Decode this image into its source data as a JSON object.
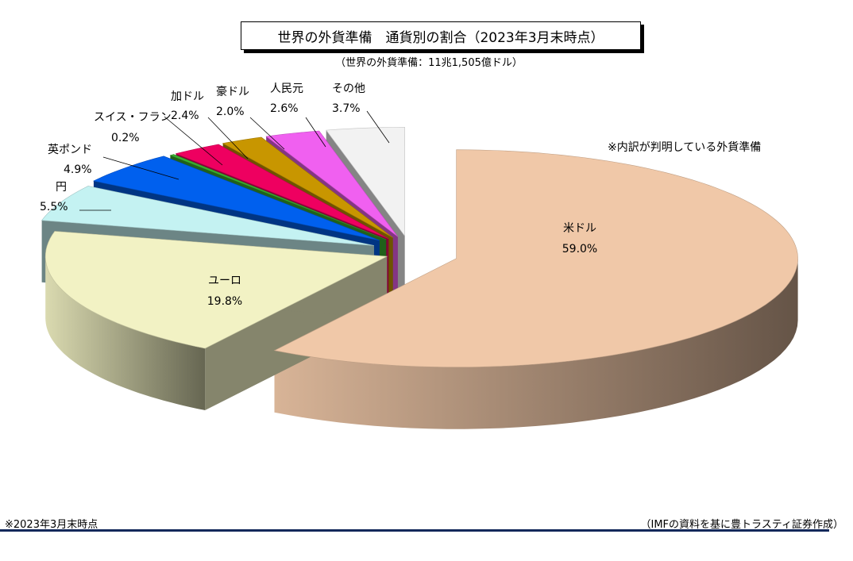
{
  "title": "世界の外貨準備　通貨別の割合（2023年3月末時点）",
  "subtitle": "（世界の外貨準備：11兆1,505億ドル）",
  "note": "※内訳が判明している外貨準備",
  "footer_left": "※2023年3月末時点",
  "footer_right": "（IMFの資料を基に豊トラスティ証券作成）",
  "footer_rule_color": "#12285a",
  "chart_data": {
    "type": "pie",
    "title": "世界の外貨準備　通貨別の割合（2023年3月末時点）",
    "subtitle": "（世界の外貨準備：11兆1,505億ドル）",
    "unit": "%",
    "slices": [
      {
        "label": "米ドル",
        "value": 59.0,
        "value_label": "59.0%",
        "color": "#f0c8a8"
      },
      {
        "label": "ユーロ",
        "value": 19.8,
        "value_label": "19.8%",
        "color": "#f2f2c4"
      },
      {
        "label": "円",
        "value": 5.5,
        "value_label": "5.5%",
        "color": "#c4f2f2"
      },
      {
        "label": "英ポンド",
        "value": 4.9,
        "value_label": "4.9%",
        "color": "#0060ee"
      },
      {
        "label": "スイス・フラン",
        "value": 0.2,
        "value_label": "0.2%",
        "color": "#3ab030"
      },
      {
        "label": "加ドル",
        "value": 2.4,
        "value_label": "2.4%",
        "color": "#ee0060"
      },
      {
        "label": "豪ドル",
        "value": 2.0,
        "value_label": "2.0%",
        "color": "#c89600"
      },
      {
        "label": "人民元",
        "value": 2.6,
        "value_label": "2.6%",
        "color": "#f060f0"
      },
      {
        "label": "その他",
        "value": 3.7,
        "value_label": "3.7%",
        "color": "#f2f2f2"
      }
    ]
  }
}
